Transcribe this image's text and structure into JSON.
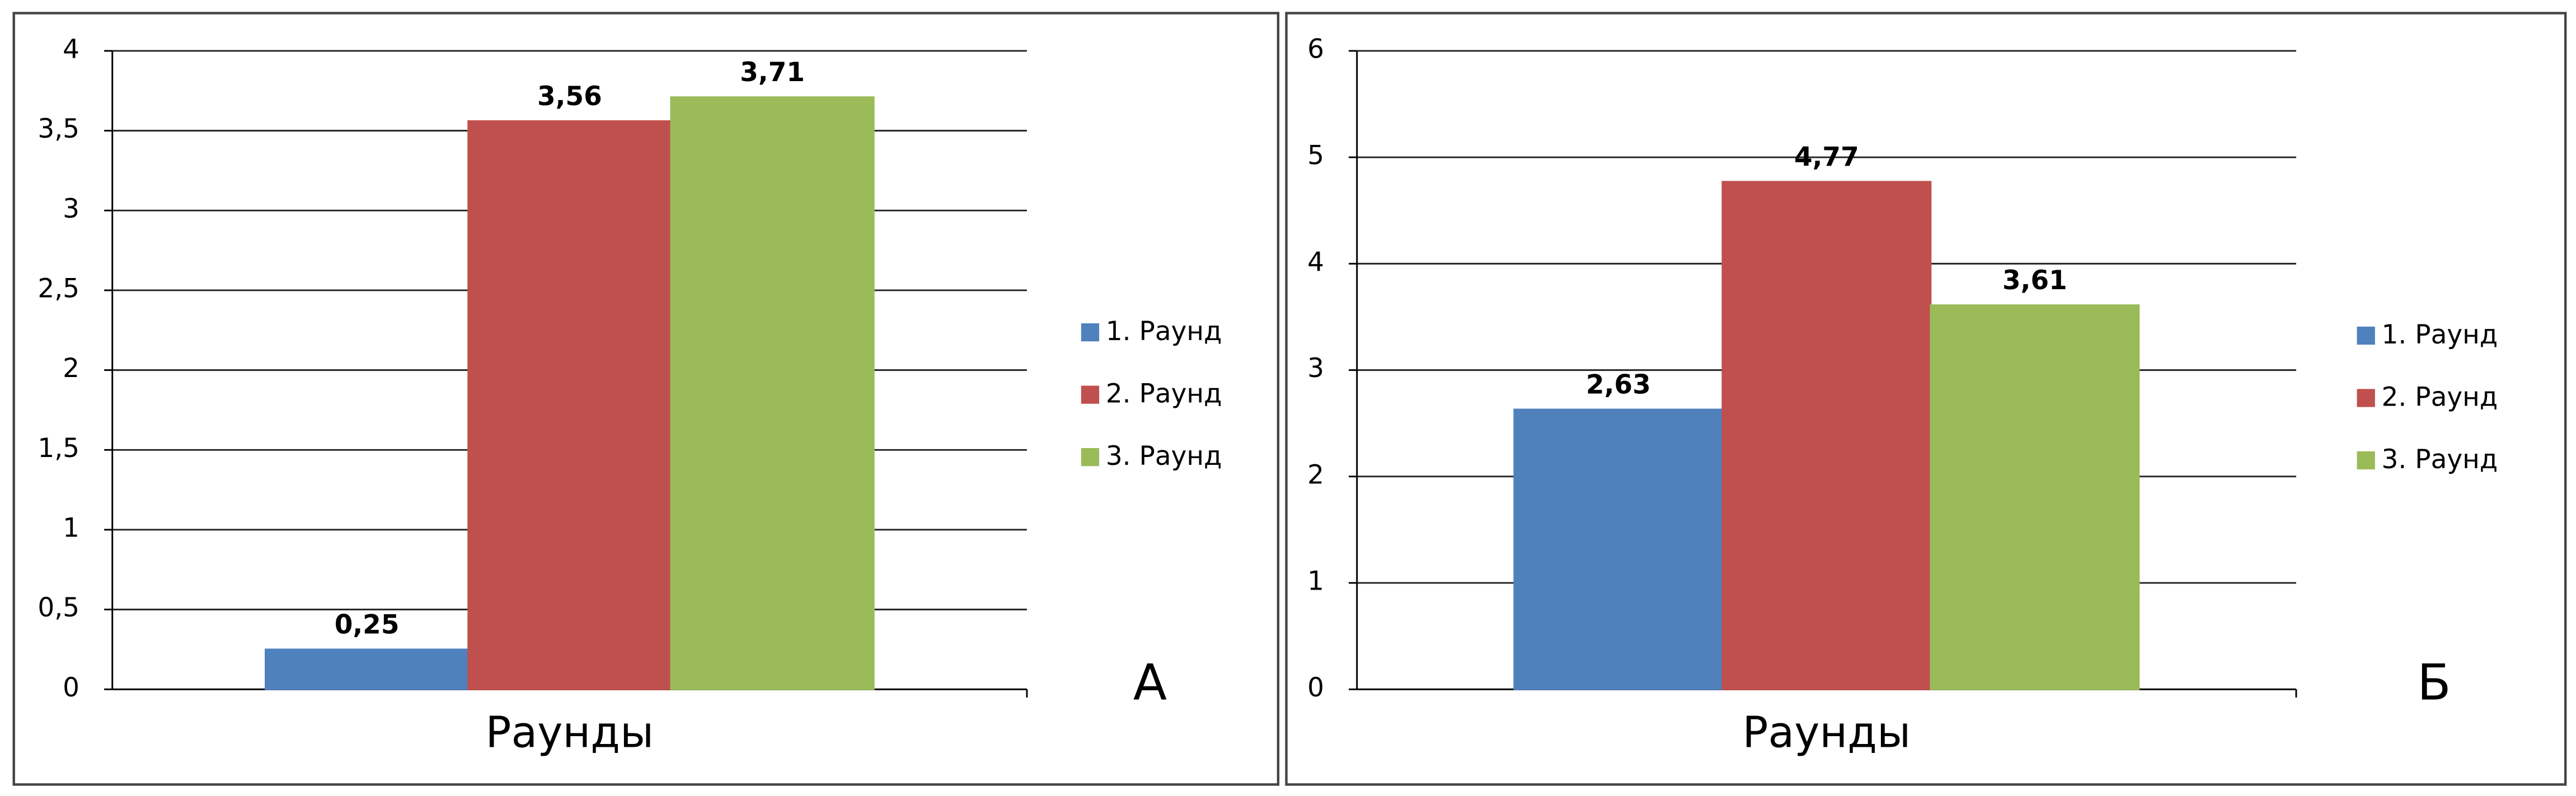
{
  "chart_data": [
    {
      "type": "bar",
      "categories": [
        "Раунды"
      ],
      "series": [
        {
          "name": "1. Раунд",
          "color": "#4f81bd",
          "values": [
            0.25
          ],
          "value_labels": [
            "0,25"
          ]
        },
        {
          "name": "2. Раунд",
          "color": "#c0504d",
          "values": [
            3.56
          ],
          "value_labels": [
            "3,56"
          ]
        },
        {
          "name": "3. Раунд",
          "color": "#9bbb59",
          "values": [
            3.71
          ],
          "value_labels": [
            "3,71"
          ]
        }
      ],
      "ylim": [
        0,
        4
      ],
      "yticks": [
        0,
        {
          "value": 0.5,
          "label": "0,5"
        },
        1,
        {
          "value": 1.5,
          "label": "1,5"
        },
        2,
        {
          "value": 2.5,
          "label": "2,5"
        },
        3,
        {
          "value": 3.5,
          "label": "3,5"
        },
        4
      ],
      "grid": true,
      "legend": "right",
      "annotation": "А"
    },
    {
      "type": "bar",
      "categories": [
        "Раунды"
      ],
      "series": [
        {
          "name": "1. Раунд",
          "color": "#4f81bd",
          "values": [
            2.63
          ],
          "value_labels": [
            "2,63"
          ]
        },
        {
          "name": "2. Раунд",
          "color": "#c0504d",
          "values": [
            4.77
          ],
          "value_labels": [
            "4,77"
          ]
        },
        {
          "name": "3. Раунд",
          "color": "#9bbb59",
          "values": [
            3.61
          ],
          "value_labels": [
            "3,61"
          ]
        }
      ],
      "ylim": [
        0,
        6
      ],
      "yticks": [
        0,
        1,
        2,
        3,
        4,
        5,
        6
      ],
      "grid": true,
      "legend": "right",
      "annotation": "Б"
    }
  ]
}
